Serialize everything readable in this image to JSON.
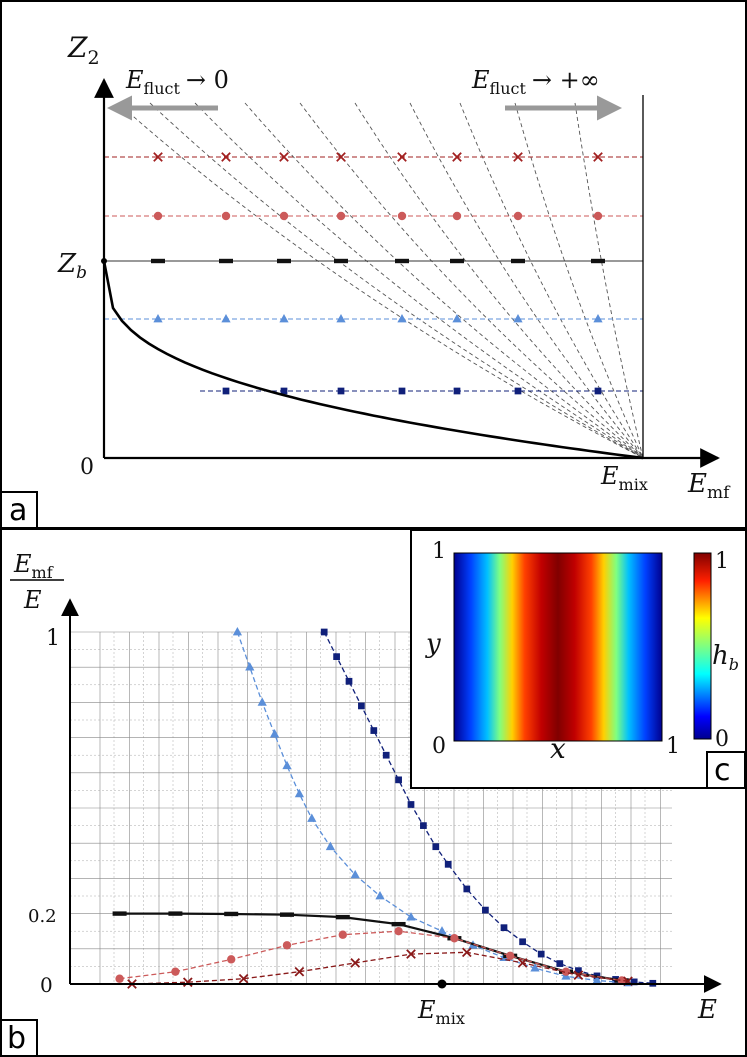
{
  "panels": {
    "a": "a",
    "b": "b",
    "c": "c"
  },
  "panel_a": {
    "y_axis_label": "Z",
    "y_axis_sub": "2",
    "x_axis_label": "E",
    "x_axis_sub": "mf",
    "origin_label": "0",
    "zb_label": "Z",
    "zb_sub": "b",
    "emix_label": "E",
    "emix_sub": "mix",
    "left_arrow_label": "E",
    "left_arrow_sub": "fluct",
    "left_arrow_tail": "→ 0",
    "right_arrow_label": "E",
    "right_arrow_sub": "fluct",
    "right_arrow_tail": "→ +∞",
    "levels": [
      {
        "marker": "cross",
        "color": "#a22020",
        "z": 0.82
      },
      {
        "marker": "circle",
        "color": "#cc5a5a",
        "z": 0.67
      },
      {
        "marker": "dash",
        "color": "#111111",
        "z": 0.55
      },
      {
        "marker": "triangle",
        "color": "#5b8fd9",
        "z": 0.39
      },
      {
        "marker": "square",
        "color": "#10207a",
        "z": 0.2
      }
    ]
  },
  "chart_data": {
    "type": "line",
    "xlabel": "E",
    "ylabel": "E_mf / E",
    "ylabel_num": "E",
    "ylabel_num_sub": "mf",
    "ylabel_den": "E",
    "y_ticks": [
      "1",
      "0.2",
      "0"
    ],
    "x_marker_label": "E",
    "x_marker_sub": "mix",
    "series": [
      {
        "marker": "square",
        "color": "#10207a",
        "x": [
          0.41,
          0.43,
          0.45,
          0.47,
          0.49,
          0.51,
          0.53,
          0.55,
          0.57,
          0.59,
          0.61,
          0.64,
          0.67,
          0.7,
          0.73,
          0.76,
          0.79,
          0.82,
          0.85,
          0.88,
          0.91,
          0.94
        ],
        "y": [
          1.0,
          0.93,
          0.86,
          0.79,
          0.72,
          0.65,
          0.58,
          0.51,
          0.45,
          0.39,
          0.34,
          0.27,
          0.21,
          0.16,
          0.12,
          0.085,
          0.058,
          0.038,
          0.023,
          0.013,
          0.006,
          0.002
        ]
      },
      {
        "marker": "triangle",
        "color": "#5b8fd9",
        "x": [
          0.27,
          0.29,
          0.31,
          0.33,
          0.35,
          0.37,
          0.39,
          0.42,
          0.46,
          0.5,
          0.55,
          0.6,
          0.65,
          0.7,
          0.75,
          0.8,
          0.85,
          0.9
        ],
        "y": [
          1.0,
          0.9,
          0.8,
          0.71,
          0.62,
          0.54,
          0.47,
          0.39,
          0.31,
          0.25,
          0.19,
          0.15,
          0.11,
          0.075,
          0.045,
          0.022,
          0.01,
          0.003
        ]
      },
      {
        "marker": "dash",
        "color": "#111111",
        "x": [
          0.08,
          0.17,
          0.26,
          0.35,
          0.44,
          0.53,
          0.62,
          0.71,
          0.8,
          0.89
        ],
        "y": [
          0.2,
          0.2,
          0.199,
          0.197,
          0.19,
          0.17,
          0.13,
          0.08,
          0.035,
          0.01
        ]
      },
      {
        "marker": "circle",
        "color": "#cc5a5a",
        "x": [
          0.08,
          0.17,
          0.26,
          0.35,
          0.44,
          0.53,
          0.62,
          0.71,
          0.8,
          0.89
        ],
        "y": [
          0.015,
          0.035,
          0.07,
          0.11,
          0.14,
          0.15,
          0.13,
          0.08,
          0.035,
          0.01
        ]
      },
      {
        "marker": "cross",
        "color": "#8a1a1a",
        "x": [
          0.1,
          0.19,
          0.28,
          0.37,
          0.46,
          0.55,
          0.64,
          0.73,
          0.82,
          0.9
        ],
        "y": [
          0.0,
          0.005,
          0.015,
          0.035,
          0.06,
          0.085,
          0.09,
          0.06,
          0.025,
          0.008
        ]
      }
    ],
    "emix_x": 0.6
  },
  "inset": {
    "x_label": "x",
    "y_label": "y",
    "x0": "0",
    "x1": "1",
    "y0": "0",
    "y1": "1",
    "cbar_label": "h",
    "cbar_sub": "b",
    "cbar_max": "1",
    "cbar_min": "0"
  }
}
